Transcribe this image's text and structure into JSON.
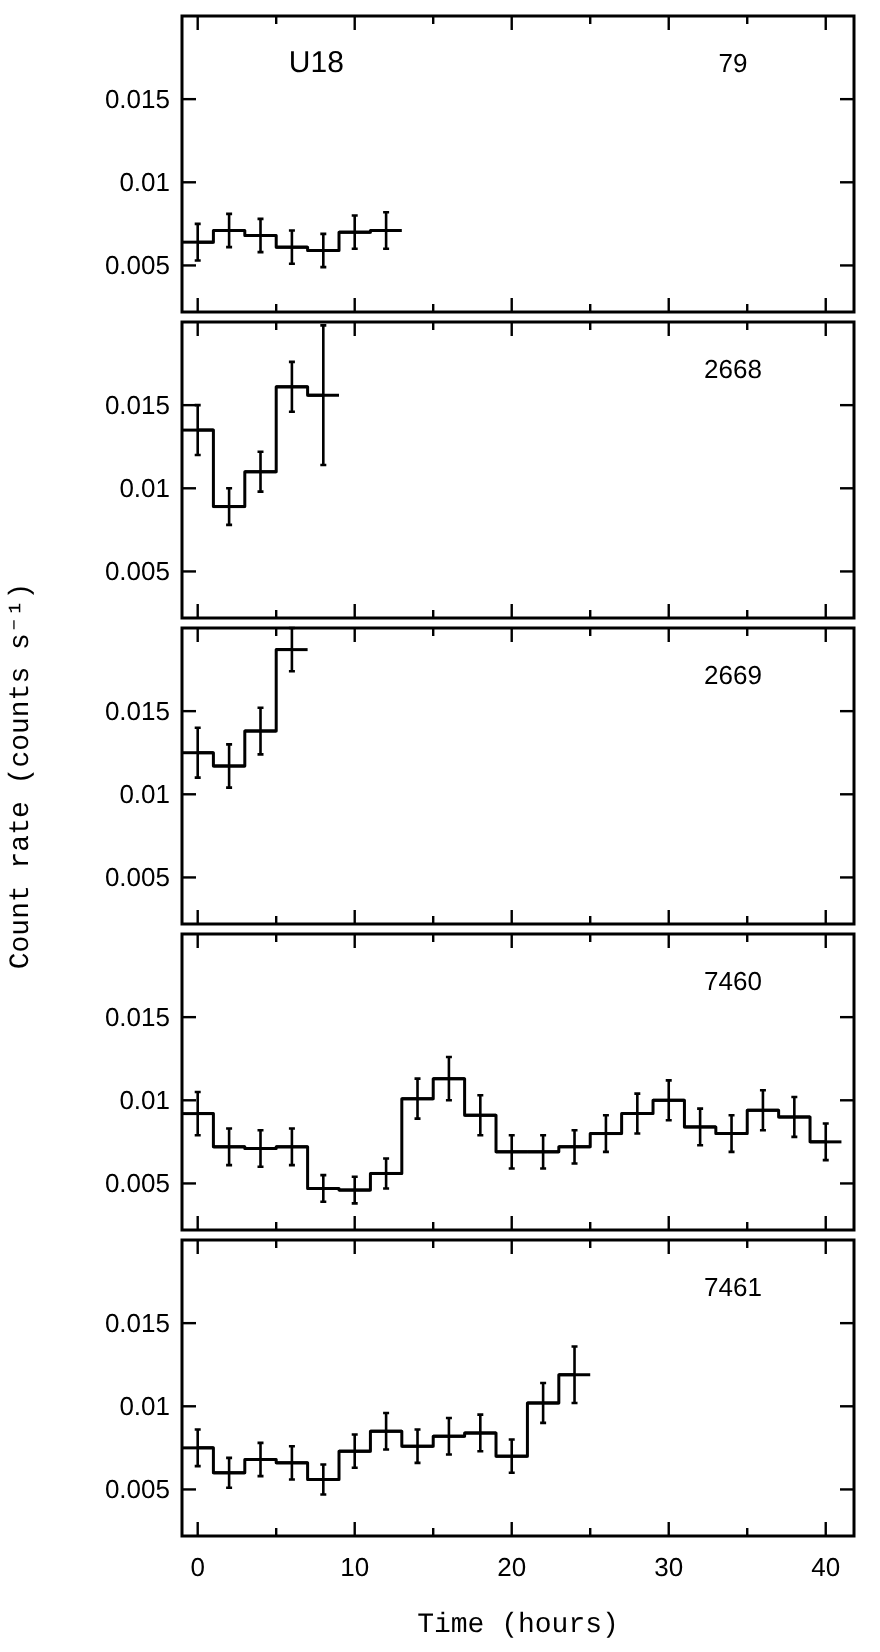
{
  "chart_data": [
    {
      "type": "step",
      "annotations": [
        "U18",
        "79"
      ],
      "x": [
        0,
        2,
        4,
        6,
        8,
        10,
        12
      ],
      "values": [
        0.0064,
        0.0071,
        0.0068,
        0.0061,
        0.0059,
        0.007,
        0.0071
      ],
      "errors": [
        0.0011,
        0.001,
        0.001,
        0.001,
        0.001,
        0.001,
        0.0011
      ],
      "xerrors": [
        1,
        1,
        1,
        1,
        1,
        1,
        1
      ],
      "xlim": [
        -1,
        41.8
      ],
      "ylim": [
        0.0022,
        0.02
      ],
      "xticks": [
        0,
        {
          "value": 5,
          "label": null
        },
        10,
        {
          "value": 15,
          "label": null
        },
        20,
        {
          "value": 25,
          "label": null
        },
        30,
        {
          "value": 35,
          "label": null
        },
        40
      ],
      "yticks": [
        0.005,
        0.01,
        0.015
      ],
      "tick_labels": "y",
      "color": "#000000"
    },
    {
      "type": "step",
      "annotations": [
        "2668"
      ],
      "x": [
        0,
        2,
        4,
        6,
        8
      ],
      "values": [
        0.0135,
        0.0089,
        0.011,
        0.0161,
        0.0156
      ],
      "errors": [
        0.0015,
        0.0011,
        0.0012,
        0.0015,
        0.0042
      ],
      "xerrors": [
        1,
        1,
        1,
        1,
        1
      ],
      "xlim": [
        -1,
        41.8
      ],
      "ylim": [
        0.0022,
        0.02
      ],
      "xticks": [
        0,
        {
          "value": 5,
          "label": null
        },
        10,
        {
          "value": 15,
          "label": null
        },
        20,
        {
          "value": 25,
          "label": null
        },
        30,
        {
          "value": 35,
          "label": null
        },
        40
      ],
      "yticks": [
        0.005,
        0.01,
        0.015
      ],
      "tick_labels": "y",
      "color": "#000000"
    },
    {
      "type": "step",
      "annotations": [
        "2669"
      ],
      "ylabel": "Count rate (counts s⁻¹)",
      "x": [
        0,
        2,
        4,
        6
      ],
      "values": [
        0.0125,
        0.0117,
        0.0138,
        0.0187
      ],
      "errors": [
        0.0015,
        0.0013,
        0.0014,
        0.0013
      ],
      "xerrors": [
        1,
        1,
        1,
        1
      ],
      "xlim": [
        -1,
        41.8
      ],
      "ylim": [
        0.0022,
        0.02
      ],
      "xticks": [
        0,
        {
          "value": 5,
          "label": null
        },
        10,
        {
          "value": 15,
          "label": null
        },
        20,
        {
          "value": 25,
          "label": null
        },
        30,
        {
          "value": 35,
          "label": null
        },
        40
      ],
      "yticks": [
        0.005,
        0.01,
        0.015
      ],
      "tick_labels": "y",
      "color": "#000000"
    },
    {
      "type": "step",
      "annotations": [
        "7460"
      ],
      "x": [
        0,
        2,
        4,
        6,
        8,
        10,
        12,
        14,
        16,
        18,
        20,
        22,
        24,
        26,
        28,
        30,
        32,
        34,
        36,
        38,
        40
      ],
      "values": [
        0.0092,
        0.0072,
        0.0071,
        0.0072,
        0.0047,
        0.0046,
        0.0056,
        0.0101,
        0.0113,
        0.0091,
        0.0069,
        0.0069,
        0.0072,
        0.008,
        0.0092,
        0.01,
        0.0084,
        0.008,
        0.0094,
        0.009,
        0.0075
      ],
      "xerrors": [
        1,
        1,
        1,
        1,
        1,
        1,
        1,
        1,
        1,
        1,
        1,
        1,
        1,
        1,
        1,
        1,
        1,
        1,
        1,
        1,
        1
      ],
      "errors": [
        0.0013,
        0.0011,
        0.0011,
        0.0011,
        0.0008,
        0.0008,
        0.0009,
        0.0012,
        0.0013,
        0.0012,
        0.001,
        0.001,
        0.001,
        0.0011,
        0.0012,
        0.0012,
        0.0011,
        0.0011,
        0.0012,
        0.0012,
        0.0011
      ],
      "xlim": [
        -1,
        41.8
      ],
      "ylim": [
        0.0022,
        0.02
      ],
      "xticks": [
        0,
        {
          "value": 5,
          "label": null
        },
        10,
        {
          "value": 15,
          "label": null
        },
        20,
        {
          "value": 25,
          "label": null
        },
        30,
        {
          "value": 35,
          "label": null
        },
        40
      ],
      "yticks": [
        0.005,
        0.01,
        0.015
      ],
      "tick_labels": "y",
      "color": "#000000"
    },
    {
      "type": "step",
      "annotations": [
        "7461"
      ],
      "xlabel": "Time (hours)",
      "x": [
        0,
        2,
        4,
        6,
        8,
        10,
        12,
        14,
        16,
        18,
        20,
        22,
        24
      ],
      "values": [
        0.0075,
        0.006,
        0.0068,
        0.0066,
        0.0056,
        0.0073,
        0.0085,
        0.0076,
        0.0082,
        0.0084,
        0.007,
        0.0102,
        0.0119
      ],
      "xerrors": [
        1,
        1,
        1,
        1,
        1,
        1,
        1,
        1,
        1,
        1,
        1,
        1,
        1
      ],
      "errors": [
        0.0011,
        0.0009,
        0.001,
        0.001,
        0.0009,
        0.001,
        0.0011,
        0.001,
        0.0011,
        0.0011,
        0.001,
        0.0012,
        0.0017
      ],
      "xlim": [
        -1,
        41.8
      ],
      "ylim": [
        0.0022,
        0.02
      ],
      "xticks": [
        0,
        {
          "value": 5,
          "label": null
        },
        10,
        {
          "value": 15,
          "label": null
        },
        20,
        {
          "value": 25,
          "label": null
        },
        30,
        {
          "value": 35,
          "label": null
        },
        40
      ],
      "yticks": [
        0.005,
        0.01,
        0.015
      ],
      "color": "#000000"
    }
  ]
}
